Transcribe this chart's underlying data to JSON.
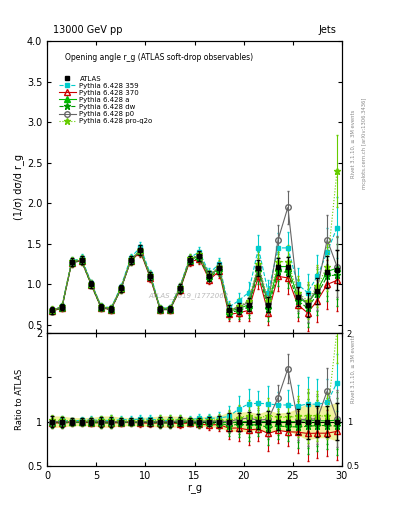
{
  "title_top": "13000 GeV pp",
  "title_right": "Jets",
  "panel_title": "Opening angle r_g (ATLAS soft-drop observables)",
  "ylabel_main": "(1/σ) dσ/d r_g",
  "ylabel_ratio": "Ratio to ATLAS",
  "xlabel": "r_g",
  "watermark": "ATLAS_2019_I1772062",
  "rivet_text": "Rivet 3.1.10, ≥ 3M events",
  "arxiv_text": "mcplots.cern.ch [arXiv:1306.3436]",
  "ylim_main": [
    0.4,
    4.0
  ],
  "ylim_ratio": [
    0.5,
    2.0
  ],
  "xlim": [
    0,
    30
  ],
  "x_atlas": [
    0.5,
    1.5,
    2.5,
    3.5,
    4.5,
    5.5,
    6.5,
    7.5,
    8.5,
    9.5,
    10.5,
    11.5,
    12.5,
    13.5,
    14.5,
    15.5,
    16.5,
    17.5,
    18.5,
    19.5,
    20.5,
    21.5,
    22.5,
    23.5,
    24.5,
    25.5,
    26.5,
    27.5,
    28.5,
    29.5
  ],
  "y_atlas": [
    0.68,
    0.72,
    1.28,
    1.3,
    1.0,
    0.72,
    0.7,
    0.95,
    1.3,
    1.42,
    1.1,
    0.7,
    0.7,
    0.95,
    1.3,
    1.35,
    1.1,
    1.2,
    0.68,
    0.7,
    0.75,
    1.2,
    0.75,
    1.22,
    1.22,
    0.85,
    0.75,
    0.92,
    1.15,
    1.18
  ],
  "yerr_atlas": [
    0.04,
    0.04,
    0.05,
    0.05,
    0.04,
    0.04,
    0.04,
    0.04,
    0.05,
    0.06,
    0.05,
    0.04,
    0.04,
    0.05,
    0.05,
    0.06,
    0.06,
    0.07,
    0.07,
    0.07,
    0.08,
    0.1,
    0.09,
    0.11,
    0.12,
    0.12,
    0.15,
    0.16,
    0.2,
    0.25
  ],
  "series": [
    {
      "label": "Pythia 6.428 359",
      "color": "#00cccc",
      "linestyle": "--",
      "marker": "s",
      "markersize": 3,
      "filled": true,
      "y": [
        0.68,
        0.73,
        1.29,
        1.32,
        1.02,
        0.73,
        0.71,
        0.97,
        1.33,
        1.46,
        1.13,
        0.71,
        0.71,
        0.97,
        1.33,
        1.4,
        1.14,
        1.25,
        0.72,
        0.8,
        0.9,
        1.45,
        0.9,
        1.45,
        1.45,
        1.0,
        0.9,
        1.1,
        1.4,
        1.7
      ],
      "yerr": [
        0.04,
        0.04,
        0.05,
        0.05,
        0.04,
        0.04,
        0.04,
        0.04,
        0.05,
        0.06,
        0.05,
        0.04,
        0.04,
        0.05,
        0.05,
        0.06,
        0.06,
        0.08,
        0.08,
        0.1,
        0.13,
        0.16,
        0.15,
        0.18,
        0.2,
        0.2,
        0.23,
        0.26,
        0.3,
        0.38
      ]
    },
    {
      "label": "Pythia 6.428 370",
      "color": "#cc0000",
      "linestyle": "-",
      "marker": "^",
      "markersize": 4,
      "filled": false,
      "y": [
        0.67,
        0.71,
        1.27,
        1.29,
        0.99,
        0.71,
        0.69,
        0.94,
        1.29,
        1.4,
        1.08,
        0.69,
        0.69,
        0.93,
        1.28,
        1.31,
        1.06,
        1.16,
        0.63,
        0.65,
        0.68,
        1.1,
        0.65,
        1.1,
        1.08,
        0.75,
        0.65,
        0.8,
        1.0,
        1.05
      ],
      "yerr": [
        0.04,
        0.04,
        0.05,
        0.05,
        0.04,
        0.04,
        0.04,
        0.04,
        0.05,
        0.06,
        0.05,
        0.04,
        0.04,
        0.05,
        0.05,
        0.06,
        0.06,
        0.08,
        0.08,
        0.1,
        0.13,
        0.16,
        0.15,
        0.18,
        0.2,
        0.2,
        0.23,
        0.26,
        0.3,
        0.38
      ]
    },
    {
      "label": "Pythia 6.428 a",
      "color": "#00bb00",
      "linestyle": "-",
      "marker": "^",
      "markersize": 4,
      "filled": true,
      "y": [
        0.68,
        0.72,
        1.28,
        1.3,
        1.0,
        0.72,
        0.7,
        0.95,
        1.3,
        1.42,
        1.1,
        0.7,
        0.7,
        0.95,
        1.3,
        1.35,
        1.1,
        1.2,
        0.67,
        0.7,
        0.75,
        1.2,
        0.75,
        1.22,
        1.22,
        0.85,
        0.76,
        0.93,
        1.16,
        1.2
      ],
      "yerr": [
        0.04,
        0.04,
        0.05,
        0.05,
        0.04,
        0.04,
        0.04,
        0.04,
        0.05,
        0.06,
        0.05,
        0.04,
        0.04,
        0.05,
        0.05,
        0.06,
        0.06,
        0.08,
        0.08,
        0.1,
        0.13,
        0.16,
        0.15,
        0.18,
        0.2,
        0.2,
        0.23,
        0.26,
        0.3,
        0.38
      ]
    },
    {
      "label": "Pythia 6.428 dw",
      "color": "#009900",
      "linestyle": "--",
      "marker": "*",
      "markersize": 5,
      "filled": true,
      "y": [
        0.67,
        0.71,
        1.27,
        1.29,
        0.99,
        0.71,
        0.69,
        0.94,
        1.29,
        1.41,
        1.09,
        0.69,
        0.69,
        0.94,
        1.29,
        1.32,
        1.08,
        1.18,
        0.65,
        0.68,
        0.72,
        1.16,
        0.7,
        1.16,
        1.15,
        0.8,
        0.71,
        0.88,
        1.1,
        1.12
      ],
      "yerr": [
        0.04,
        0.04,
        0.05,
        0.05,
        0.04,
        0.04,
        0.04,
        0.04,
        0.05,
        0.06,
        0.05,
        0.04,
        0.04,
        0.05,
        0.05,
        0.06,
        0.06,
        0.08,
        0.08,
        0.1,
        0.13,
        0.16,
        0.15,
        0.18,
        0.2,
        0.2,
        0.23,
        0.26,
        0.3,
        0.38
      ]
    },
    {
      "label": "Pythia 6.428 p0",
      "color": "#666666",
      "linestyle": "-",
      "marker": "o",
      "markersize": 4,
      "filled": false,
      "y": [
        0.68,
        0.72,
        1.28,
        1.3,
        1.01,
        0.72,
        0.7,
        0.95,
        1.3,
        1.42,
        1.1,
        0.7,
        0.7,
        0.96,
        1.31,
        1.36,
        1.11,
        1.21,
        0.68,
        0.72,
        0.78,
        1.22,
        0.77,
        1.55,
        1.95,
        0.87,
        0.77,
        0.95,
        1.55,
        1.22
      ],
      "yerr": [
        0.04,
        0.04,
        0.05,
        0.05,
        0.04,
        0.04,
        0.04,
        0.04,
        0.05,
        0.06,
        0.05,
        0.04,
        0.04,
        0.05,
        0.05,
        0.06,
        0.06,
        0.08,
        0.08,
        0.1,
        0.13,
        0.16,
        0.15,
        0.18,
        0.2,
        0.2,
        0.23,
        0.26,
        0.3,
        0.38
      ]
    },
    {
      "label": "Pythia 6.428 pro-q2o",
      "color": "#66cc00",
      "linestyle": ":",
      "marker": "*",
      "markersize": 5,
      "filled": true,
      "y": [
        0.69,
        0.73,
        1.29,
        1.31,
        1.01,
        0.73,
        0.71,
        0.96,
        1.31,
        1.43,
        1.11,
        0.71,
        0.71,
        0.97,
        1.32,
        1.37,
        1.12,
        1.22,
        0.69,
        0.73,
        0.8,
        1.25,
        0.8,
        1.28,
        1.28,
        0.9,
        0.8,
        0.98,
        1.22,
        2.4
      ],
      "yerr": [
        0.04,
        0.04,
        0.05,
        0.05,
        0.04,
        0.04,
        0.04,
        0.04,
        0.05,
        0.06,
        0.05,
        0.04,
        0.04,
        0.05,
        0.05,
        0.06,
        0.06,
        0.08,
        0.08,
        0.1,
        0.13,
        0.16,
        0.15,
        0.18,
        0.2,
        0.2,
        0.23,
        0.26,
        0.3,
        0.44
      ]
    }
  ],
  "atlas_band_color": "#eeee88",
  "atlas_band_alpha": 0.8
}
